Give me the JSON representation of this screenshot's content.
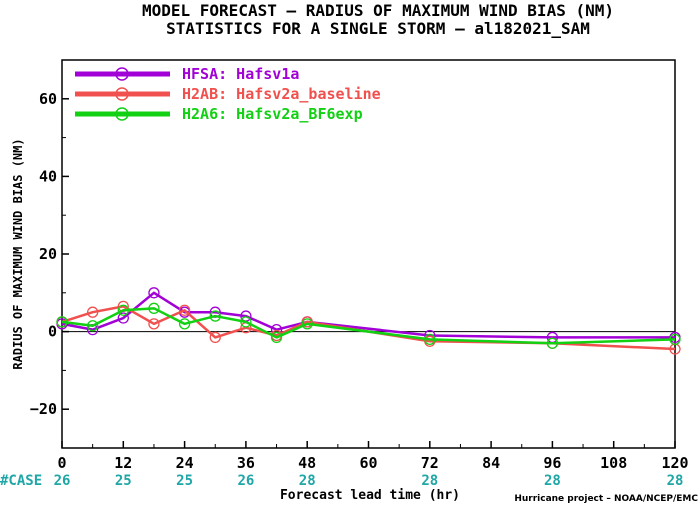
{
  "chart_data": {
    "type": "line",
    "title": "MODEL FORECAST – RADIUS OF MAXIMUM WIND BIAS (NM)",
    "subtitle": "STATISTICS FOR A SINGLE STORM – al182021_SAM",
    "xlabel": "Forecast lead time (hr)",
    "ylabel": "RADIUS OF MAXIMUM WIND BIAS (NM)",
    "xlim": [
      0,
      120
    ],
    "ylim": [
      -30,
      70
    ],
    "x_ticks": [
      0,
      12,
      24,
      36,
      48,
      60,
      72,
      84,
      96,
      108,
      120
    ],
    "y_ticks": [
      -20,
      0,
      20,
      40,
      60
    ],
    "y_tick_labels": [
      "−20",
      "0",
      "20",
      "40",
      "60"
    ],
    "case_label": "#CASE",
    "case_x": [
      0,
      12,
      24,
      36,
      48,
      72,
      96,
      120
    ],
    "case_counts": [
      "26",
      "25",
      "25",
      "26",
      "28",
      "28",
      "28",
      "28"
    ],
    "credit": "Hurricane project – NOAA/NCEP/EMC",
    "legend_position": "top-left",
    "grid": false,
    "series": [
      {
        "name": "HFSA: Hafsv1a",
        "color": "#a100d6",
        "x": [
          0,
          6,
          12,
          18,
          24,
          30,
          36,
          42,
          48,
          72,
          96,
          120
        ],
        "y": [
          2,
          0.5,
          3.5,
          10,
          5,
          5,
          4,
          0.5,
          2.5,
          -1,
          -1.5,
          -1.5
        ]
      },
      {
        "name": "H2AB: Hafsv2a_baseline",
        "color": "#f0504e",
        "x": [
          0,
          6,
          12,
          18,
          24,
          30,
          36,
          42,
          48,
          72,
          96,
          120
        ],
        "y": [
          2.5,
          5,
          6.5,
          2,
          5.5,
          -1.5,
          1,
          -1,
          2.5,
          -2.5,
          -3,
          -4.5
        ]
      },
      {
        "name": "H2A6: Hafsv2a_BF6exp",
        "color": "#12d012",
        "x": [
          0,
          6,
          12,
          18,
          24,
          30,
          36,
          42,
          48,
          72,
          96,
          120
        ],
        "y": [
          2.5,
          1.5,
          5.5,
          6,
          2,
          4,
          2.5,
          -1.5,
          2,
          -2,
          -3,
          -2
        ]
      }
    ]
  }
}
